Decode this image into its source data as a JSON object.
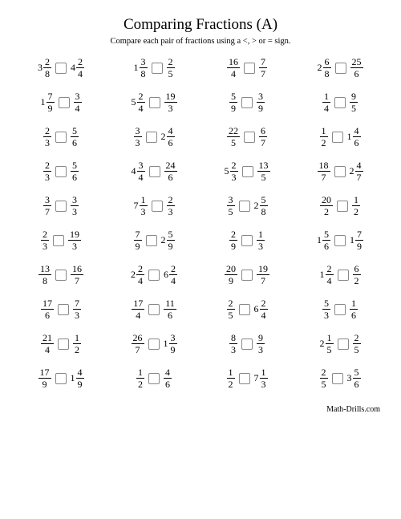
{
  "title": "Comparing Fractions (A)",
  "instructions": "Compare each pair of fractions using a <, > or = sign.",
  "footer": "Math-Drills.com",
  "problems": [
    [
      {
        "w": "3",
        "n": "2",
        "d": "8"
      },
      {
        "w": "4",
        "n": "2",
        "d": "4"
      }
    ],
    [
      {
        "w": "1",
        "n": "3",
        "d": "8"
      },
      {
        "n": "2",
        "d": "5"
      }
    ],
    [
      {
        "n": "16",
        "d": "4"
      },
      {
        "n": "7",
        "d": "7"
      }
    ],
    [
      {
        "w": "2",
        "n": "6",
        "d": "8"
      },
      {
        "n": "25",
        "d": "6"
      }
    ],
    [
      {
        "w": "1",
        "n": "7",
        "d": "9"
      },
      {
        "n": "3",
        "d": "4"
      }
    ],
    [
      {
        "w": "5",
        "n": "2",
        "d": "4"
      },
      {
        "n": "19",
        "d": "3"
      }
    ],
    [
      {
        "n": "5",
        "d": "9"
      },
      {
        "n": "3",
        "d": "9"
      }
    ],
    [
      {
        "n": "1",
        "d": "4"
      },
      {
        "n": "9",
        "d": "5"
      }
    ],
    [
      {
        "n": "2",
        "d": "3"
      },
      {
        "n": "5",
        "d": "6"
      }
    ],
    [
      {
        "n": "3",
        "d": "3"
      },
      {
        "w": "2",
        "n": "4",
        "d": "6"
      }
    ],
    [
      {
        "n": "22",
        "d": "5"
      },
      {
        "n": "6",
        "d": "7"
      }
    ],
    [
      {
        "n": "1",
        "d": "2"
      },
      {
        "w": "1",
        "n": "4",
        "d": "6"
      }
    ],
    [
      {
        "n": "2",
        "d": "3"
      },
      {
        "n": "5",
        "d": "6"
      }
    ],
    [
      {
        "w": "4",
        "n": "3",
        "d": "4"
      },
      {
        "n": "24",
        "d": "6"
      }
    ],
    [
      {
        "w": "5",
        "n": "2",
        "d": "3"
      },
      {
        "n": "13",
        "d": "5"
      }
    ],
    [
      {
        "n": "18",
        "d": "7"
      },
      {
        "w": "2",
        "n": "4",
        "d": "7"
      }
    ],
    [
      {
        "n": "3",
        "d": "7"
      },
      {
        "n": "3",
        "d": "3"
      }
    ],
    [
      {
        "w": "7",
        "n": "1",
        "d": "3"
      },
      {
        "n": "2",
        "d": "3"
      }
    ],
    [
      {
        "n": "3",
        "d": "5"
      },
      {
        "w": "2",
        "n": "5",
        "d": "8"
      }
    ],
    [
      {
        "n": "20",
        "d": "2"
      },
      {
        "n": "1",
        "d": "2"
      }
    ],
    [
      {
        "n": "2",
        "d": "3"
      },
      {
        "n": "19",
        "d": "3"
      }
    ],
    [
      {
        "n": "7",
        "d": "9"
      },
      {
        "w": "2",
        "n": "5",
        "d": "9"
      }
    ],
    [
      {
        "n": "2",
        "d": "9"
      },
      {
        "n": "1",
        "d": "3"
      }
    ],
    [
      {
        "w": "1",
        "n": "5",
        "d": "6"
      },
      {
        "w": "1",
        "n": "7",
        "d": "9"
      }
    ],
    [
      {
        "n": "13",
        "d": "8"
      },
      {
        "n": "16",
        "d": "7"
      }
    ],
    [
      {
        "w": "2",
        "n": "2",
        "d": "4"
      },
      {
        "w": "6",
        "n": "2",
        "d": "4"
      }
    ],
    [
      {
        "n": "20",
        "d": "9"
      },
      {
        "n": "19",
        "d": "7"
      }
    ],
    [
      {
        "w": "1",
        "n": "2",
        "d": "4"
      },
      {
        "n": "6",
        "d": "2"
      }
    ],
    [
      {
        "n": "17",
        "d": "6"
      },
      {
        "n": "7",
        "d": "3"
      }
    ],
    [
      {
        "n": "17",
        "d": "4"
      },
      {
        "n": "11",
        "d": "6"
      }
    ],
    [
      {
        "n": "2",
        "d": "5"
      },
      {
        "w": "6",
        "n": "2",
        "d": "4"
      }
    ],
    [
      {
        "n": "5",
        "d": "3"
      },
      {
        "n": "1",
        "d": "6"
      }
    ],
    [
      {
        "n": "21",
        "d": "4"
      },
      {
        "n": "1",
        "d": "2"
      }
    ],
    [
      {
        "n": "26",
        "d": "7"
      },
      {
        "w": "1",
        "n": "3",
        "d": "9"
      }
    ],
    [
      {
        "n": "8",
        "d": "3"
      },
      {
        "n": "9",
        "d": "3"
      }
    ],
    [
      {
        "w": "2",
        "n": "1",
        "d": "5"
      },
      {
        "n": "2",
        "d": "5"
      }
    ],
    [
      {
        "n": "17",
        "d": "9"
      },
      {
        "w": "1",
        "n": "4",
        "d": "9"
      }
    ],
    [
      {
        "n": "1",
        "d": "2"
      },
      {
        "n": "4",
        "d": "6"
      }
    ],
    [
      {
        "n": "1",
        "d": "2"
      },
      {
        "w": "7",
        "n": "1",
        "d": "3"
      }
    ],
    [
      {
        "n": "2",
        "d": "5"
      },
      {
        "w": "3",
        "n": "5",
        "d": "6"
      }
    ]
  ]
}
